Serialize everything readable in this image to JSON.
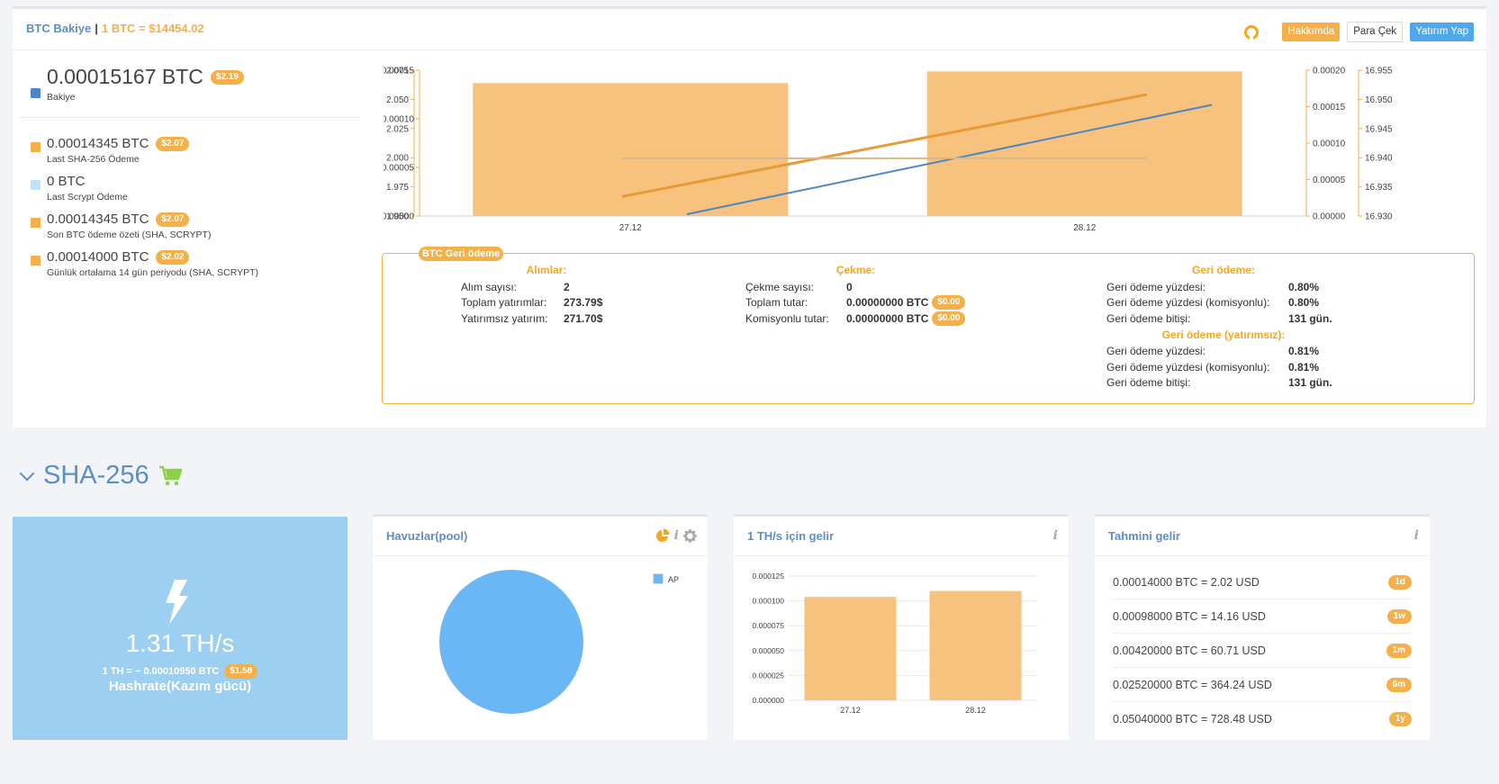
{
  "header": {
    "brand": "BTC Bakiye",
    "separator": "|",
    "price": "1 BTC = $14454.02",
    "github_icon": "github-icon",
    "about_label": "Hakkımda",
    "withdraw_label": "Para Çek",
    "invest_label": "Yatırım Yap"
  },
  "balances": [
    {
      "value": "0.00015167 BTC",
      "usd": "$2.19",
      "label": "Bakiye",
      "color": "#4e86c4"
    },
    {
      "value": "0.00014345 BTC",
      "usd": "$2.07",
      "label": "Last SHA-256 Ödeme",
      "color": "#f5b04a"
    },
    {
      "value": "0 BTC",
      "usd": "",
      "label": "Last Scrypt Ödeme",
      "color": "#bfe3f2"
    },
    {
      "value": "0.00014345 BTC",
      "usd": "$2.07",
      "label": "Son BTC ödeme özeti (SHA, SCRYPT)",
      "color": "#f5b04a"
    },
    {
      "value": "0.00014000 BTC",
      "usd": "$2.02",
      "label": "Günlük ortalama 14 gün periyodu (SHA, SCRYPT)",
      "color": "#f5b04a"
    }
  ],
  "chart_data": [
    {
      "type": "bar",
      "categories": [
        "27.12",
        "28.12"
      ],
      "axes": {
        "left_outer": {
          "ticks": [
            "1.950",
            "1.975",
            "2.000",
            "2.025",
            "2.050",
            "2.075"
          ],
          "range": [
            1.95,
            2.075
          ]
        },
        "left_inner": {
          "ticks": [
            "0.00000",
            "0.00005",
            "0.00010",
            "0.00015"
          ],
          "range": [
            0,
            0.00015
          ]
        },
        "right_inner": {
          "ticks": [
            "0.00000",
            "0.00005",
            "0.00010",
            "0.00015",
            "0.00020"
          ],
          "range": [
            0,
            0.0002
          ]
        },
        "right_outer": {
          "ticks": [
            "16.930",
            "16.935",
            "16.940",
            "16.945",
            "16.950",
            "16.955"
          ],
          "range": [
            16.93,
            16.955
          ]
        }
      },
      "bars": {
        "axis": "left_outer",
        "values": [
          2.064,
          2.074
        ],
        "color": "#f7c27d"
      },
      "lines": [
        {
          "axis": "left_inner",
          "values": [
            2e-05,
            0.000125
          ],
          "color": "#e99a38"
        },
        {
          "axis": "right_inner",
          "values": [
            2.5e-06,
            0.0001525
          ],
          "color": "#4e86c4"
        },
        {
          "axis": "right_outer",
          "values": [
            16.9399,
            16.9399
          ],
          "color": "#d8b98a"
        }
      ],
      "grid": false
    },
    {
      "type": "bar",
      "categories": [
        "27.12",
        "28.12"
      ],
      "values": [
        0.000104,
        0.00011
      ],
      "yticks": [
        "0.000000",
        "0.000025",
        "0.000050",
        "0.000075",
        "0.000100",
        "0.000125"
      ],
      "ylim": [
        0,
        0.000125
      ],
      "color": "#f7c27d",
      "grid": true
    },
    {
      "type": "pie",
      "labels": [
        "AP"
      ],
      "values": [
        100
      ],
      "colors": [
        "#6bb6f5"
      ],
      "legend": "top-right"
    }
  ],
  "refund": {
    "title": "BTC Geri ödeme",
    "purchases": {
      "heading": "Alımlar:",
      "rows": [
        {
          "k": "Alım sayısı:",
          "v": "2"
        },
        {
          "k": "Toplam yatırımlar:",
          "v": "273.79$"
        },
        {
          "k": "Yatırımsız yatırım:",
          "v": "271.70$"
        }
      ]
    },
    "withdrawals": {
      "heading": "Çekme:",
      "rows": [
        {
          "k": "Çekme sayısı:",
          "v": "0",
          "usd": ""
        },
        {
          "k": "Toplam tutar:",
          "v": "0.00000000 BTC",
          "usd": "$0.00"
        },
        {
          "k": "Komisyonlu tutar:",
          "v": "0.00000000 BTC",
          "usd": "$0.00"
        }
      ]
    },
    "payback": {
      "heading": "Geri ödeme:",
      "rows": [
        {
          "k": "Geri ödeme yüzdesi:",
          "v": "0.80%"
        },
        {
          "k": "Geri ödeme yüzdesi (komisyonlu):",
          "v": "0.80%"
        },
        {
          "k": "Geri ödeme bitişi:",
          "v": "131 gün."
        }
      ],
      "heading2": "Geri ödeme (yatırımsız):",
      "rows2": [
        {
          "k": "Geri ödeme yüzdesi:",
          "v": "0.81%"
        },
        {
          "k": "Geri ödeme yüzdesi (komisyonlu):",
          "v": "0.81%"
        },
        {
          "k": "Geri ödeme bitişi:",
          "v": "131 gün."
        }
      ]
    }
  },
  "section": {
    "title": "SHA-256",
    "cart_icon": "cart-icon"
  },
  "hashrate": {
    "value": "1.31 TH/s",
    "rate": "1 TH = ~ 0.00010950 BTC",
    "usd": "$1.58",
    "label": "Hashrate(Kazım gücü)"
  },
  "pools": {
    "title": "Havuzlar(pool)",
    "legend": "AP"
  },
  "income": {
    "title": "1 TH/s için gelir"
  },
  "estimate": {
    "title": "Tahmini gelir",
    "rows": [
      {
        "text": "0.00014000 BTC = 2.02 USD",
        "period": "1d"
      },
      {
        "text": "0.00098000 BTC = 14.16 USD",
        "period": "1w"
      },
      {
        "text": "0.00420000 BTC = 60.71 USD",
        "period": "1m"
      },
      {
        "text": "0.02520000 BTC = 364.24 USD",
        "period": "6m"
      },
      {
        "text": "0.05040000 BTC = 728.48 USD",
        "period": "1y"
      }
    ]
  }
}
